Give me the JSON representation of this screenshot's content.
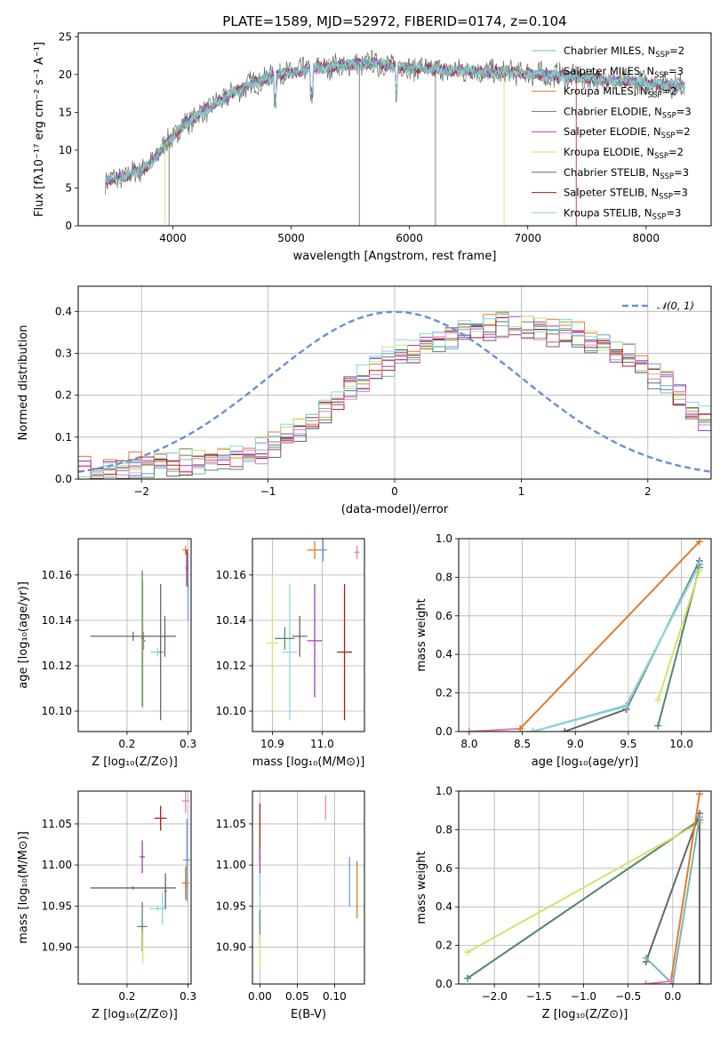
{
  "colors": {
    "chabrier_miles": "#75b8b0",
    "salpeter_miles": "#7099d9",
    "kroupa_miles": "#e07b2c",
    "chabrier_elodie": "#55886a",
    "salpeter_elodie": "#a040b8",
    "kroupa_elodie": "#d4e26a",
    "chabrier_stelib": "#666666",
    "salpeter_stelib": "#b01c1c",
    "kroupa_stelib": "#88d6e0",
    "pink": "#e57fc0",
    "normal": "#6a8fd8"
  },
  "chart_data": [
    {
      "id": "spectrum",
      "type": "line",
      "title": "PLATE=1589, MJD=52972, FIBERID=0174, z=0.104",
      "xlabel": "wavelength [Angstrom, rest frame]",
      "ylabel": "Flux [fλ10⁻¹⁷ erg cm⁻² s⁻¹ A⁻¹]",
      "xlim": [
        3200,
        8550
      ],
      "ylim": [
        0,
        25.5
      ],
      "xticks": [
        4000,
        5000,
        6000,
        7000,
        8000
      ],
      "yticks": [
        0,
        5,
        10,
        15,
        20,
        25
      ],
      "legend_placement": "right",
      "legend": [
        {
          "label": "Chabrier MILES, N",
          "sub": "SSP",
          "tail": "=2",
          "color_key": "chabrier_miles"
        },
        {
          "label": "Salpeter MILES, N",
          "sub": "SSP",
          "tail": "=3",
          "color_key": "salpeter_miles"
        },
        {
          "label": "Kroupa MILES, N",
          "sub": "SSP",
          "tail": "=2",
          "color_key": "kroupa_miles"
        },
        {
          "label": "Chabrier ELODIE, N",
          "sub": "SSP",
          "tail": "=3",
          "color_key": "chabrier_elodie"
        },
        {
          "label": "Salpeter ELODIE, N",
          "sub": "SSP",
          "tail": "=2",
          "color_key": "salpeter_elodie"
        },
        {
          "label": "Kroupa ELODIE, N",
          "sub": "SSP",
          "tail": "=2",
          "color_key": "kroupa_elodie"
        },
        {
          "label": "Chabrier STELIB, N",
          "sub": "SSP",
          "tail": "=3",
          "color_key": "chabrier_stelib"
        },
        {
          "label": "Salpeter STELIB, N",
          "sub": "SSP",
          "tail": "=3",
          "color_key": "salpeter_stelib"
        },
        {
          "label": "Kroupa STELIB, N",
          "sub": "SSP",
          "tail": "=3",
          "color_key": "kroupa_stelib"
        }
      ],
      "continuum": {
        "x": [
          3430,
          3600,
          3800,
          3950,
          4100,
          4300,
          4500,
          4700,
          4900,
          5100,
          5300,
          5500,
          5700,
          5900,
          6100,
          6300,
          6500,
          6700,
          6900,
          7100,
          7300,
          7500,
          7700,
          7900,
          8100,
          8300
        ],
        "y": [
          6.0,
          6.5,
          8.0,
          11.0,
          13.5,
          15.5,
          17.5,
          19.0,
          20.0,
          20.5,
          21.0,
          21.3,
          21.5,
          21.0,
          20.8,
          20.5,
          20.5,
          20.3,
          20.3,
          20.0,
          19.8,
          19.5,
          19.2,
          19.0,
          18.8,
          18.5
        ]
      },
      "absorption_features": [
        {
          "x": 3934,
          "y": 0
        },
        {
          "x": 3968,
          "y": 0
        },
        {
          "x": 5577,
          "y": 0
        },
        {
          "x": 6220,
          "y": 0
        },
        {
          "x": 6800,
          "y": 0
        },
        {
          "x": 7410,
          "y": 0
        }
      ]
    },
    {
      "id": "residuals",
      "type": "line",
      "xlabel": "(data-model)/error",
      "ylabel": "Normed distribution",
      "xlim": [
        -2.5,
        2.5
      ],
      "ylim": [
        0,
        0.46
      ],
      "xticks": [
        -2,
        -1,
        0,
        1,
        2
      ],
      "yticks": [
        0.0,
        0.1,
        0.2,
        0.3,
        0.4
      ],
      "legend_placement": "top-right",
      "normal_label": "𝒩(0, 1)",
      "bin_edges_start": -2.5,
      "bin_width": 0.1,
      "hist_base": [
        0.02,
        0.02,
        0.025,
        0.025,
        0.03,
        0.03,
        0.035,
        0.035,
        0.04,
        0.04,
        0.045,
        0.05,
        0.055,
        0.06,
        0.07,
        0.08,
        0.1,
        0.12,
        0.14,
        0.16,
        0.19,
        0.22,
        0.24,
        0.27,
        0.28,
        0.3,
        0.31,
        0.32,
        0.33,
        0.34,
        0.35,
        0.36,
        0.36,
        0.37,
        0.37,
        0.37,
        0.36,
        0.35,
        0.35,
        0.34,
        0.33,
        0.32,
        0.3,
        0.29,
        0.27,
        0.25,
        0.23,
        0.2,
        0.17,
        0.14
      ]
    },
    {
      "id": "age_vs_Z",
      "type": "scatter",
      "xlabel": "Z [log₁₀(Z/Z⊙)]",
      "ylabel": "age  [log₁₀(age/yr)]",
      "xlim": [
        0.12,
        0.305
      ],
      "ylim": [
        10.091,
        10.176
      ],
      "xticks": [
        0.2,
        0.3
      ],
      "yticks": [
        10.1,
        10.12,
        10.14,
        10.16
      ],
      "points": [
        {
          "x": 0.227,
          "y": 10.131,
          "xerr": 0.003,
          "yerr": 0.004,
          "color_key": "salpeter_elodie"
        },
        {
          "x": 0.226,
          "y": 10.129,
          "xerr": 0.003,
          "yerr": 0.028,
          "color_key": "kroupa_elodie"
        },
        {
          "x": 0.225,
          "y": 10.132,
          "xerr": 0.002,
          "yerr": 0.03,
          "color_key": "chabrier_elodie"
        },
        {
          "x": 0.25,
          "y": 10.126,
          "xerr": 0.011,
          "yerr": 0.002,
          "color_key": "kroupa_stelib"
        },
        {
          "x": 0.255,
          "y": 10.126,
          "xerr": 0.002,
          "yerr": 0.03,
          "color_key": "chabrier_stelib"
        },
        {
          "x": 0.21,
          "y": 10.133,
          "xerr": 0.07,
          "yerr": 0.002,
          "color_key": "chabrier_stelib"
        },
        {
          "x": 0.262,
          "y": 10.133,
          "xerr": 0.002,
          "yerr": 0.009,
          "color_key": "chabrier_stelib"
        },
        {
          "x": 0.296,
          "y": 10.171,
          "xerr": 0.005,
          "yerr": 0.002,
          "color_key": "kroupa_miles"
        },
        {
          "x": 0.298,
          "y": 10.163,
          "xerr": 0.002,
          "yerr": 0.008,
          "color_key": "salpeter_stelib"
        },
        {
          "x": 0.3,
          "y": 10.155,
          "xerr": 0.002,
          "yerr": 0.015,
          "color_key": "salpeter_miles"
        }
      ]
    },
    {
      "id": "age_vs_mass",
      "type": "scatter",
      "xlabel": "mass [log₁₀(M/M⊙)]",
      "ylabel": "",
      "xlim": [
        10.86,
        11.085
      ],
      "ylim": [
        10.091,
        10.176
      ],
      "xticks": [
        10.9,
        11.0
      ],
      "yticks": [
        10.1,
        10.12,
        10.14,
        10.16
      ],
      "points": [
        {
          "x": 10.9,
          "y": 10.13,
          "xerr": 0.012,
          "yerr": 0.03,
          "color_key": "kroupa_elodie"
        },
        {
          "x": 10.935,
          "y": 10.126,
          "xerr": 0.015,
          "yerr": 0.03,
          "color_key": "kroupa_stelib"
        },
        {
          "x": 10.925,
          "y": 10.132,
          "xerr": 0.02,
          "yerr": 0.005,
          "color_key": "chabrier_elodie"
        },
        {
          "x": 10.955,
          "y": 10.133,
          "xerr": 0.015,
          "yerr": 0.009,
          "color_key": "chabrier_stelib"
        },
        {
          "x": 10.985,
          "y": 10.171,
          "xerr": 0.015,
          "yerr": 0.004,
          "color_key": "kroupa_miles"
        },
        {
          "x": 11.002,
          "y": 10.171,
          "xerr": 0.008,
          "yerr": 0.005,
          "color_key": "salpeter_miles"
        },
        {
          "x": 10.985,
          "y": 10.131,
          "xerr": 0.015,
          "yerr": 0.025,
          "color_key": "salpeter_elodie"
        },
        {
          "x": 11.045,
          "y": 10.126,
          "xerr": 0.015,
          "yerr": 0.03,
          "color_key": "salpeter_stelib"
        },
        {
          "x": 11.07,
          "y": 10.17,
          "xerr": 0.005,
          "yerr": 0.003,
          "color_key": "pink"
        }
      ]
    },
    {
      "id": "weight_vs_age",
      "type": "line",
      "xlabel": "age  [log₁₀(age/yr)]",
      "ylabel": "mass weight",
      "xlim": [
        7.9,
        10.28
      ],
      "ylim": [
        0,
        1.0
      ],
      "xticks": [
        8.0,
        8.5,
        9.0,
        9.5,
        10.0
      ],
      "yticks": [
        0.0,
        0.2,
        0.4,
        0.6,
        0.8,
        1.0
      ],
      "series": [
        {
          "color_key": "pink",
          "x": [
            8.0,
            8.48
          ],
          "y": [
            0.0,
            0.015
          ]
        },
        {
          "color_key": "kroupa_miles",
          "x": [
            8.48,
            10.17
          ],
          "y": [
            0.015,
            0.985
          ]
        },
        {
          "color_key": "chabrier_stelib",
          "x": [
            8.9,
            9.48,
            10.17
          ],
          "y": [
            0.0,
            0.115,
            0.885
          ]
        },
        {
          "color_key": "chabrier_miles",
          "x": [
            8.6,
            9.48,
            10.17
          ],
          "y": [
            0.0,
            0.135,
            0.865
          ]
        },
        {
          "color_key": "kroupa_stelib",
          "x": [
            8.6,
            9.48,
            10.17
          ],
          "y": [
            0.0,
            0.13,
            0.87
          ]
        },
        {
          "color_key": "chabrier_elodie",
          "x": [
            9.78,
            10.17
          ],
          "y": [
            0.03,
            0.85
          ]
        },
        {
          "color_key": "kroupa_elodie",
          "x": [
            9.78,
            10.17
          ],
          "y": [
            0.165,
            0.835
          ]
        }
      ]
    },
    {
      "id": "mass_vs_Z",
      "type": "scatter",
      "xlabel": "Z [log₁₀(Z/Z⊙)]",
      "ylabel": "mass [log₁₀(M/M⊙)]",
      "xlim": [
        0.12,
        0.305
      ],
      "ylim": [
        10.855,
        11.09
      ],
      "xticks": [
        0.2,
        0.3
      ],
      "yticks": [
        10.9,
        10.95,
        11.0,
        11.05
      ],
      "points": [
        {
          "x": 0.21,
          "y": 10.972,
          "xerr": 0.07,
          "yerr": 0.002,
          "color_key": "chabrier_stelib"
        },
        {
          "x": 0.225,
          "y": 10.925,
          "xerr": 0.008,
          "yerr": 0.03,
          "color_key": "chabrier_elodie"
        },
        {
          "x": 0.226,
          "y": 10.9,
          "xerr": 0.005,
          "yerr": 0.02,
          "color_key": "kroupa_elodie"
        },
        {
          "x": 0.225,
          "y": 11.01,
          "xerr": 0.004,
          "yerr": 0.02,
          "color_key": "salpeter_elodie"
        },
        {
          "x": 0.25,
          "y": 10.947,
          "xerr": 0.012,
          "yerr": 0.003,
          "color_key": "kroupa_stelib"
        },
        {
          "x": 0.258,
          "y": 10.947,
          "xerr": 0.002,
          "yerr": 0.02,
          "color_key": "kroupa_stelib"
        },
        {
          "x": 0.255,
          "y": 11.057,
          "xerr": 0.01,
          "yerr": 0.015,
          "color_key": "salpeter_stelib"
        },
        {
          "x": 0.263,
          "y": 10.968,
          "xerr": 0.002,
          "yerr": 0.022,
          "color_key": "chabrier_stelib"
        },
        {
          "x": 0.296,
          "y": 10.978,
          "xerr": 0.006,
          "yerr": 0.02,
          "color_key": "kroupa_miles"
        },
        {
          "x": 0.298,
          "y": 11.006,
          "xerr": 0.006,
          "yerr": 0.05,
          "color_key": "salpeter_miles"
        },
        {
          "x": 0.296,
          "y": 11.078,
          "xerr": 0.006,
          "yerr": 0.015,
          "color_key": "pink"
        }
      ]
    },
    {
      "id": "mass_vs_ebv",
      "type": "scatter",
      "xlabel": "E(B-V)",
      "ylabel": "",
      "xlim": [
        -0.01,
        0.14
      ],
      "ylim": [
        10.855,
        11.09
      ],
      "xticks": [
        0.0,
        0.05,
        0.1
      ],
      "xtick_labels": [
        "0.00",
        "0.05",
        "0.10"
      ],
      "yticks": [
        10.9,
        10.95,
        11.0,
        11.05
      ],
      "points": [
        {
          "x": 0.0,
          "y": 11.04,
          "xerr": 0,
          "yerr": 0.035,
          "color_key": "salpeter_stelib"
        },
        {
          "x": 0.0,
          "y": 10.99,
          "xerr": 0,
          "yerr": 0.03,
          "color_key": "salpeter_elodie"
        },
        {
          "x": 0.0,
          "y": 10.96,
          "xerr": 0,
          "yerr": 0.03,
          "color_key": "kroupa_stelib"
        },
        {
          "x": 0.0,
          "y": 10.925,
          "xerr": 0,
          "yerr": 0.02,
          "color_key": "chabrier_elodie"
        },
        {
          "x": 0.0,
          "y": 10.895,
          "xerr": 0,
          "yerr": 0.02,
          "color_key": "kroupa_elodie"
        },
        {
          "x": 0.088,
          "y": 11.07,
          "xerr": 0,
          "yerr": 0.015,
          "color_key": "pink"
        },
        {
          "x": 0.12,
          "y": 10.98,
          "xerr": 0,
          "yerr": 0.03,
          "color_key": "salpeter_miles"
        },
        {
          "x": 0.13,
          "y": 10.97,
          "xerr": 0,
          "yerr": 0.035,
          "color_key": "kroupa_miles"
        }
      ]
    },
    {
      "id": "weight_vs_Z",
      "type": "line",
      "xlabel": "Z [log₁₀(Z/Z⊙)]",
      "ylabel": "mass weight",
      "xlim": [
        -2.4,
        0.43
      ],
      "ylim": [
        0,
        1.0
      ],
      "xticks": [
        -2.0,
        -1.5,
        -1.0,
        -0.5,
        0.0
      ],
      "yticks": [
        0.0,
        0.2,
        0.4,
        0.6,
        0.8,
        1.0
      ],
      "series": [
        {
          "color_key": "chabrier_elodie",
          "x": [
            -2.3,
            0.3
          ],
          "y": [
            0.03,
            0.85
          ]
        },
        {
          "color_key": "kroupa_elodie",
          "x": [
            -2.3,
            0.3
          ],
          "y": [
            0.165,
            0.835
          ]
        },
        {
          "color_key": "chabrier_stelib",
          "x": [
            -0.3,
            0.3,
            0.3
          ],
          "y": [
            0.115,
            0.885,
            0.0
          ]
        },
        {
          "color_key": "chabrier_miles",
          "x": [
            -0.3,
            0.0,
            0.3
          ],
          "y": [
            0.135,
            0.0,
            0.865
          ]
        },
        {
          "color_key": "kroupa_miles",
          "x": [
            -0.02,
            0.3
          ],
          "y": [
            0.015,
            0.985
          ]
        },
        {
          "color_key": "pink",
          "x": [
            -0.3,
            -0.02
          ],
          "y": [
            0.0,
            0.015
          ]
        }
      ]
    }
  ]
}
